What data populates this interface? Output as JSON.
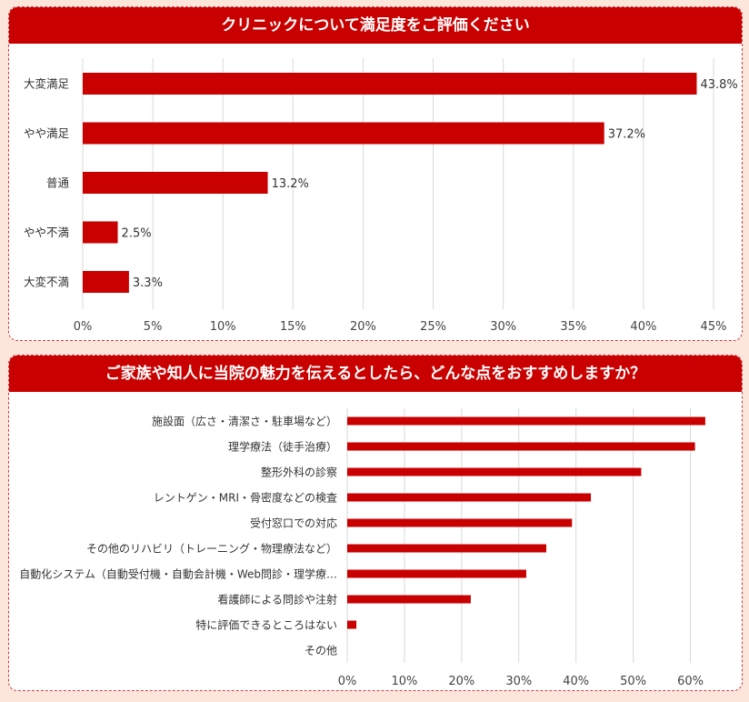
{
  "colors": {
    "bar": "#c90000",
    "header": "#c90000",
    "grid": "#d9d9d9",
    "background": "#fce6dc"
  },
  "chart_data": [
    {
      "type": "bar",
      "orientation": "horizontal",
      "title": "クリニックについて満足度をご評価ください",
      "categories": [
        "大変満足",
        "やや満足",
        "普通",
        "やや不満",
        "大変不満"
      ],
      "values": [
        43.8,
        37.2,
        13.2,
        2.5,
        3.3
      ],
      "value_labels": [
        "43.8%",
        "37.2%",
        "13.2%",
        "2.5%",
        "3.3%"
      ],
      "xlim": [
        0,
        45
      ],
      "xticks": [
        0,
        5,
        10,
        15,
        20,
        25,
        30,
        35,
        40,
        45
      ],
      "xtick_labels": [
        "0%",
        "5%",
        "10%",
        "15%",
        "20%",
        "25%",
        "30%",
        "35%",
        "40%",
        "45%"
      ],
      "grid": true
    },
    {
      "type": "bar",
      "orientation": "horizontal",
      "title": "ご家族や知人に当院の魅力を伝えるとしたら、どんな点をおすすめしますか？",
      "categories": [
        "施設面（広さ・清潔さ・駐車場など）",
        "理学療法（徒手治療）",
        "整形外科の診察",
        "レントゲン・MRI・骨密度などの検査",
        "受付窓口での対応",
        "その他のリハビリ（トレーニング・物理療法など）",
        "自動化システム（自動受付機・自動会計機・Web問診・理学療…",
        "看護師による問診や注射",
        "特に評価できるところはない",
        "その他"
      ],
      "values": [
        62.6,
        60.8,
        51.4,
        42.6,
        39.3,
        34.8,
        31.3,
        21.6,
        1.6,
        0
      ],
      "xlim": [
        0,
        65
      ],
      "xticks": [
        0,
        10,
        20,
        30,
        40,
        50,
        60
      ],
      "xtick_labels": [
        "0%",
        "10%",
        "20%",
        "30%",
        "40%",
        "50%",
        "60%"
      ],
      "grid": true
    }
  ]
}
